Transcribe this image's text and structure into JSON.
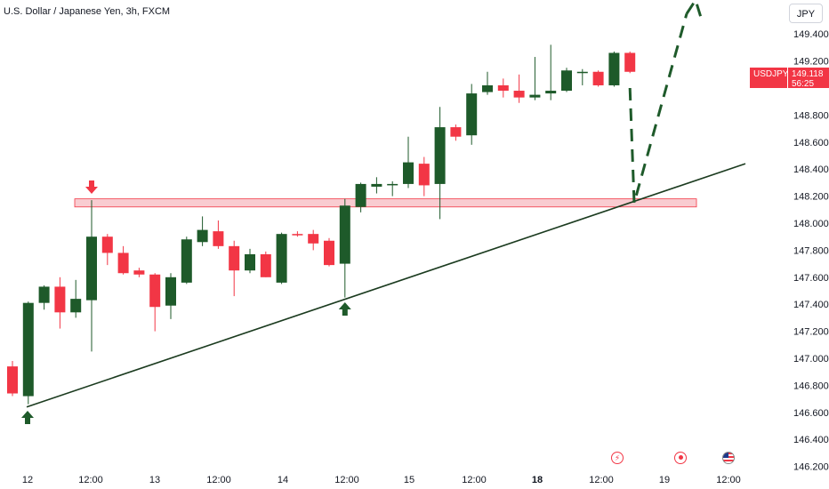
{
  "title": "U.S. Dollar / Japanese Yen, 3h, FXCM",
  "currency_button": "JPY",
  "price_label": {
    "symbol": "USDJPY",
    "price": "149.118",
    "countdown": "56:25"
  },
  "colors": {
    "up": "#1e5a2a",
    "down": "#f23645",
    "zone": "#f4a3ab",
    "trend": "#1b3b1f",
    "projection": "#1e5a2a"
  },
  "event_icons": [
    "lightning-icon",
    "target-icon",
    "us-flag-icon"
  ],
  "chart_data": {
    "type": "candlestick",
    "title": "U.S. Dollar / Japanese Yen, 3h, FXCM",
    "y_ticks": [
      "149.400",
      "149.200",
      "148.800",
      "148.600",
      "148.400",
      "148.200",
      "148.000",
      "147.800",
      "147.600",
      "147.400",
      "147.200",
      "147.000",
      "146.800",
      "146.600",
      "146.400",
      "146.200"
    ],
    "x_ticks": [
      "12",
      "12:00",
      "13",
      "12:00",
      "14",
      "12:00",
      "15",
      "12:00",
      "18",
      "12:00",
      "19",
      "12:00"
    ],
    "ylim": [
      146.2,
      149.6
    ],
    "candles": [
      {
        "o": 146.94,
        "h": 146.98,
        "l": 146.72,
        "c": 146.74
      },
      {
        "o": 146.72,
        "h": 147.42,
        "l": 146.66,
        "c": 147.41
      },
      {
        "o": 147.41,
        "h": 147.54,
        "l": 147.36,
        "c": 147.53
      },
      {
        "o": 147.53,
        "h": 147.6,
        "l": 147.22,
        "c": 147.34
      },
      {
        "o": 147.34,
        "h": 147.58,
        "l": 147.3,
        "c": 147.44
      },
      {
        "o": 147.43,
        "h": 148.17,
        "l": 147.05,
        "c": 147.9
      },
      {
        "o": 147.9,
        "h": 147.92,
        "l": 147.69,
        "c": 147.78
      },
      {
        "o": 147.78,
        "h": 147.83,
        "l": 147.62,
        "c": 147.63
      },
      {
        "o": 147.65,
        "h": 147.67,
        "l": 147.6,
        "c": 147.62
      },
      {
        "o": 147.62,
        "h": 147.63,
        "l": 147.2,
        "c": 147.38
      },
      {
        "o": 147.39,
        "h": 147.63,
        "l": 147.29,
        "c": 147.6
      },
      {
        "o": 147.56,
        "h": 147.9,
        "l": 147.55,
        "c": 147.88
      },
      {
        "o": 147.86,
        "h": 148.05,
        "l": 147.83,
        "c": 147.95
      },
      {
        "o": 147.94,
        "h": 148.02,
        "l": 147.81,
        "c": 147.83
      },
      {
        "o": 147.83,
        "h": 147.87,
        "l": 147.46,
        "c": 147.65
      },
      {
        "o": 147.65,
        "h": 147.81,
        "l": 147.63,
        "c": 147.77
      },
      {
        "o": 147.77,
        "h": 147.79,
        "l": 147.6,
        "c": 147.6
      },
      {
        "o": 147.56,
        "h": 147.93,
        "l": 147.55,
        "c": 147.92
      },
      {
        "o": 147.92,
        "h": 147.94,
        "l": 147.9,
        "c": 147.91
      },
      {
        "o": 147.92,
        "h": 147.95,
        "l": 147.8,
        "c": 147.85
      },
      {
        "o": 147.87,
        "h": 147.89,
        "l": 147.68,
        "c": 147.69
      },
      {
        "o": 147.7,
        "h": 148.18,
        "l": 147.45,
        "c": 148.13
      },
      {
        "o": 148.12,
        "h": 148.3,
        "l": 148.08,
        "c": 148.29
      },
      {
        "o": 148.27,
        "h": 148.34,
        "l": 148.22,
        "c": 148.29
      },
      {
        "o": 148.28,
        "h": 148.31,
        "l": 148.2,
        "c": 148.29
      },
      {
        "o": 148.29,
        "h": 148.64,
        "l": 148.26,
        "c": 148.45
      },
      {
        "o": 148.44,
        "h": 148.49,
        "l": 148.2,
        "c": 148.28
      },
      {
        "o": 148.29,
        "h": 148.86,
        "l": 148.03,
        "c": 148.71
      },
      {
        "o": 148.71,
        "h": 148.73,
        "l": 148.61,
        "c": 148.64
      },
      {
        "o": 148.65,
        "h": 149.03,
        "l": 148.58,
        "c": 148.96
      },
      {
        "o": 148.97,
        "h": 149.12,
        "l": 148.95,
        "c": 149.02
      },
      {
        "o": 149.02,
        "h": 149.07,
        "l": 148.93,
        "c": 148.98
      },
      {
        "o": 148.98,
        "h": 149.1,
        "l": 148.89,
        "c": 148.93
      },
      {
        "o": 148.93,
        "h": 149.23,
        "l": 148.91,
        "c": 148.95
      },
      {
        "o": 148.96,
        "h": 149.32,
        "l": 148.91,
        "c": 148.98
      },
      {
        "o": 148.98,
        "h": 149.15,
        "l": 148.97,
        "c": 149.13
      },
      {
        "o": 149.12,
        "h": 149.14,
        "l": 149.02,
        "c": 149.12
      },
      {
        "o": 149.12,
        "h": 149.13,
        "l": 149.01,
        "c": 149.02
      },
      {
        "o": 149.02,
        "h": 149.27,
        "l": 149.01,
        "c": 149.26
      },
      {
        "o": 149.26,
        "h": 149.27,
        "l": 149.11,
        "c": 149.12
      }
    ]
  }
}
